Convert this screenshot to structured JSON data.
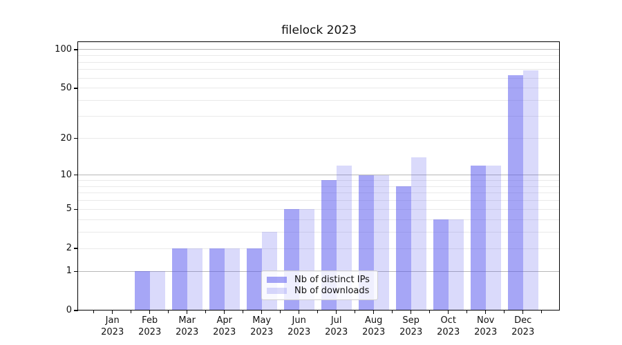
{
  "title": "filelock 2023",
  "chart_data": {
    "type": "bar",
    "title": "filelock 2023",
    "categories": [
      "Jan",
      "Feb",
      "Mar",
      "Apr",
      "May",
      "Jun",
      "Jul",
      "Aug",
      "Sep",
      "Oct",
      "Nov",
      "Dec"
    ],
    "year_label": "2023",
    "series": [
      {
        "name": "Nb of distinct IPs",
        "color": "#aaaaf6",
        "values": [
          0,
          1,
          2,
          2,
          2,
          5,
          9,
          10,
          8,
          4,
          12,
          63
        ]
      },
      {
        "name": "Nb of downloads",
        "color": "#d9d9fa",
        "values": [
          0,
          1,
          2,
          2,
          3,
          5,
          12,
          10,
          14,
          4,
          12,
          69
        ]
      }
    ],
    "yscale": "log1p",
    "y_ticks": [
      0,
      1,
      2,
      5,
      10,
      20,
      50,
      100
    ],
    "y_tick_labels": [
      "0",
      "1",
      "2",
      "5",
      "10",
      "20",
      "50",
      "100"
    ],
    "y_minor_gridlines": [
      2,
      3,
      4,
      5,
      6,
      7,
      8,
      9,
      20,
      30,
      40,
      50,
      60,
      70,
      80,
      90
    ],
    "y_major_gridlines": [
      1,
      10,
      100
    ],
    "ylim": [
      0,
      113
    ],
    "xlabel": "",
    "ylabel": "",
    "grid": true,
    "legend_position": "lower center"
  }
}
